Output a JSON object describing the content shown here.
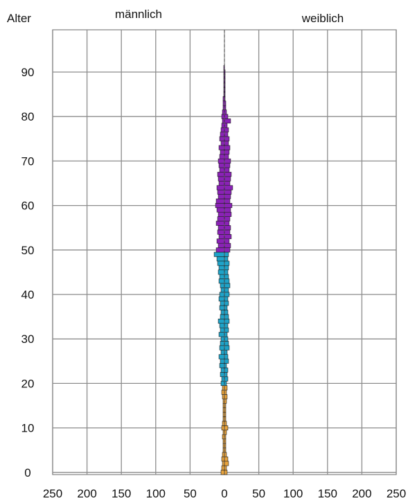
{
  "chart_data": {
    "type": "bar",
    "subtype": "population-pyramid",
    "title": "",
    "ylabel": "Alter",
    "left_label": "männlich",
    "right_label": "weiblich",
    "x_tick_labels": [
      "250",
      "200",
      "150",
      "100",
      "50",
      "0",
      "50",
      "100",
      "150",
      "200",
      "250"
    ],
    "y_tick_labels": [
      "0",
      "10",
      "20",
      "30",
      "40",
      "50",
      "60",
      "70",
      "80",
      "90"
    ],
    "xlim_each_side": [
      0,
      250
    ],
    "ylim": [
      0,
      99
    ],
    "grid": true,
    "colors": {
      "age_0_20": "#e8a33c",
      "age_20_50": "#1fa3c8",
      "age_50_plus": "#8a22b6",
      "grid": "#8c8c8c",
      "outline": "#222222"
    },
    "color_groups": [
      {
        "from_age": 0,
        "to_age": 19,
        "color": "#e8a33c"
      },
      {
        "from_age": 20,
        "to_age": 49,
        "color": "#1fa3c8"
      },
      {
        "from_age": 50,
        "to_age": 99,
        "color": "#8a22b6"
      }
    ],
    "ages": [
      0,
      1,
      2,
      3,
      4,
      5,
      6,
      7,
      8,
      9,
      10,
      11,
      12,
      13,
      14,
      15,
      16,
      17,
      18,
      19,
      20,
      21,
      22,
      23,
      24,
      25,
      26,
      27,
      28,
      29,
      30,
      31,
      32,
      33,
      34,
      35,
      36,
      37,
      38,
      39,
      40,
      41,
      42,
      43,
      44,
      45,
      46,
      47,
      48,
      49,
      50,
      51,
      52,
      53,
      54,
      55,
      56,
      57,
      58,
      59,
      60,
      61,
      62,
      63,
      64,
      65,
      66,
      67,
      68,
      69,
      70,
      71,
      72,
      73,
      74,
      75,
      76,
      77,
      78,
      79,
      80,
      81,
      82,
      83,
      84,
      85,
      86,
      87,
      88,
      89,
      90,
      91,
      92,
      93,
      94,
      95,
      96,
      97,
      98,
      99
    ],
    "series": [
      {
        "name": "männlich",
        "values": [
          5,
          4,
          3,
          4,
          3,
          2,
          2,
          2,
          3,
          2,
          4,
          3,
          2,
          2,
          2,
          2,
          2,
          3,
          4,
          3,
          5,
          4,
          6,
          5,
          7,
          6,
          8,
          5,
          7,
          6,
          5,
          8,
          6,
          7,
          9,
          6,
          5,
          7,
          6,
          8,
          7,
          5,
          6,
          8,
          7,
          9,
          8,
          10,
          11,
          15,
          12,
          9,
          11,
          8,
          10,
          9,
          12,
          10,
          9,
          11,
          13,
          12,
          9,
          10,
          11,
          8,
          9,
          10,
          7,
          8,
          9,
          7,
          6,
          8,
          5,
          7,
          6,
          5,
          4,
          3,
          4,
          3,
          2,
          2,
          2,
          1,
          1,
          1,
          1,
          1,
          1,
          1,
          0,
          0,
          0,
          0,
          0,
          0,
          0,
          0
        ]
      },
      {
        "name": "weiblich",
        "values": [
          4,
          3,
          6,
          5,
          3,
          2,
          2,
          2,
          2,
          3,
          5,
          3,
          2,
          2,
          2,
          2,
          3,
          4,
          3,
          4,
          3,
          5,
          4,
          5,
          3,
          6,
          5,
          4,
          7,
          6,
          5,
          4,
          6,
          5,
          7,
          6,
          5,
          4,
          6,
          5,
          7,
          6,
          8,
          7,
          6,
          5,
          6,
          7,
          5,
          6,
          8,
          9,
          7,
          10,
          8,
          9,
          7,
          8,
          10,
          9,
          11,
          8,
          9,
          10,
          12,
          8,
          9,
          10,
          7,
          8,
          9,
          6,
          7,
          8,
          6,
          7,
          5,
          6,
          4,
          9,
          5,
          3,
          2,
          2,
          1,
          1,
          1,
          1,
          1,
          1,
          1,
          0,
          0,
          0,
          0,
          0,
          0,
          0,
          0,
          0
        ]
      }
    ]
  }
}
